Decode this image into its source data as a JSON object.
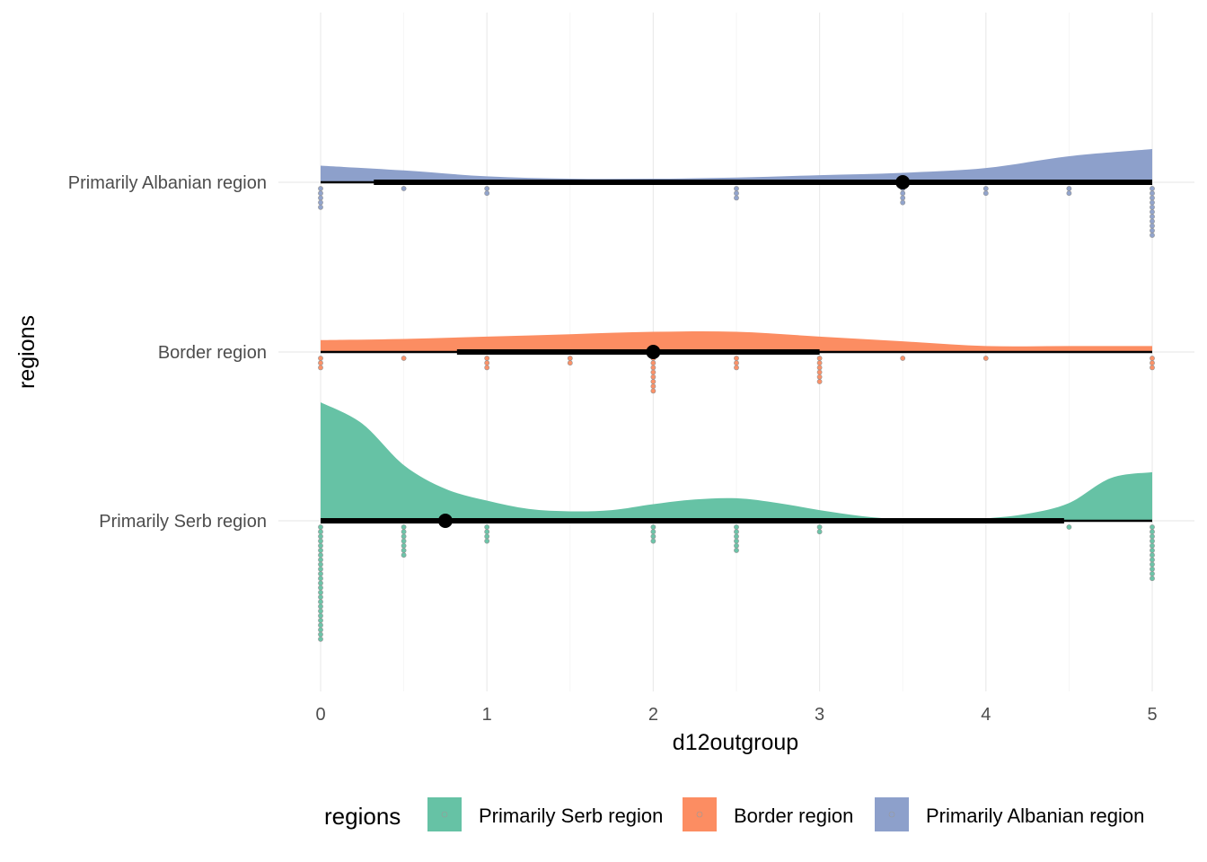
{
  "chart_data": {
    "type": "raincloud",
    "xlabel": "d12outgroup",
    "ylabel": "regions",
    "xlim": [
      0,
      5
    ],
    "x_ticks": [
      0,
      1,
      2,
      3,
      4,
      5
    ],
    "grid": true,
    "legend": {
      "title": "regions",
      "placement": "bottom",
      "entries": [
        "Primarily Serb region",
        "Border region",
        "Primarily Albanian region"
      ]
    },
    "series": [
      {
        "name": "Primarily Serb region",
        "color": "#66c2a5",
        "density": [
          [
            0,
            1.0
          ],
          [
            0.25,
            0.82
          ],
          [
            0.5,
            0.47
          ],
          [
            0.75,
            0.27
          ],
          [
            1.0,
            0.17
          ],
          [
            1.25,
            0.1
          ],
          [
            1.5,
            0.08
          ],
          [
            1.75,
            0.09
          ],
          [
            2.0,
            0.14
          ],
          [
            2.25,
            0.18
          ],
          [
            2.5,
            0.19
          ],
          [
            2.75,
            0.15
          ],
          [
            3.0,
            0.09
          ],
          [
            3.25,
            0.04
          ],
          [
            3.5,
            0.01
          ],
          [
            3.75,
            0.0
          ],
          [
            4.0,
            0.02
          ],
          [
            4.25,
            0.06
          ],
          [
            4.5,
            0.15
          ],
          [
            4.75,
            0.36
          ],
          [
            5.0,
            0.41
          ]
        ],
        "dots": [
          {
            "x": 0,
            "n": 25
          },
          {
            "x": 0.5,
            "n": 7
          },
          {
            "x": 1,
            "n": 4
          },
          {
            "x": 2,
            "n": 4
          },
          {
            "x": 2.5,
            "n": 6
          },
          {
            "x": 3,
            "n": 2
          },
          {
            "x": 4.5,
            "n": 1
          },
          {
            "x": 5,
            "n": 12
          }
        ],
        "median": 0.75,
        "interval_inner": [
          0,
          4.47
        ],
        "interval_outer": [
          0,
          5
        ]
      },
      {
        "name": "Border region",
        "color": "#fc8d62",
        "density": [
          [
            0,
            0.1
          ],
          [
            0.5,
            0.11
          ],
          [
            1.0,
            0.13
          ],
          [
            1.5,
            0.15
          ],
          [
            2.0,
            0.17
          ],
          [
            2.5,
            0.17
          ],
          [
            3.0,
            0.13
          ],
          [
            3.5,
            0.09
          ],
          [
            4.0,
            0.05
          ],
          [
            4.5,
            0.05
          ],
          [
            5.0,
            0.05
          ]
        ],
        "dots": [
          {
            "x": 0,
            "n": 3
          },
          {
            "x": 0.5,
            "n": 1
          },
          {
            "x": 1,
            "n": 3
          },
          {
            "x": 1.5,
            "n": 2
          },
          {
            "x": 2,
            "n": 8
          },
          {
            "x": 2.5,
            "n": 3
          },
          {
            "x": 3,
            "n": 6
          },
          {
            "x": 3.5,
            "n": 1
          },
          {
            "x": 4,
            "n": 1
          },
          {
            "x": 5,
            "n": 3
          }
        ],
        "median": 2,
        "interval_inner": [
          0.82,
          3.0
        ],
        "interval_outer": [
          0,
          5
        ]
      },
      {
        "name": "Primarily Albanian region",
        "color": "#8da0cb",
        "density": [
          [
            0,
            0.14
          ],
          [
            0.5,
            0.1
          ],
          [
            1.0,
            0.05
          ],
          [
            1.5,
            0.03
          ],
          [
            2.0,
            0.03
          ],
          [
            2.5,
            0.04
          ],
          [
            3.0,
            0.06
          ],
          [
            3.5,
            0.08
          ],
          [
            4.0,
            0.12
          ],
          [
            4.5,
            0.22
          ],
          [
            5.0,
            0.28
          ]
        ],
        "dots": [
          {
            "x": 0,
            "n": 5
          },
          {
            "x": 0.5,
            "n": 1
          },
          {
            "x": 1,
            "n": 2
          },
          {
            "x": 2.5,
            "n": 3
          },
          {
            "x": 3.5,
            "n": 4
          },
          {
            "x": 4,
            "n": 2
          },
          {
            "x": 4.5,
            "n": 2
          },
          {
            "x": 5,
            "n": 11
          }
        ],
        "median": 3.5,
        "interval_inner": [
          0.32,
          5.0
        ],
        "interval_outer": [
          0,
          5
        ]
      }
    ]
  }
}
